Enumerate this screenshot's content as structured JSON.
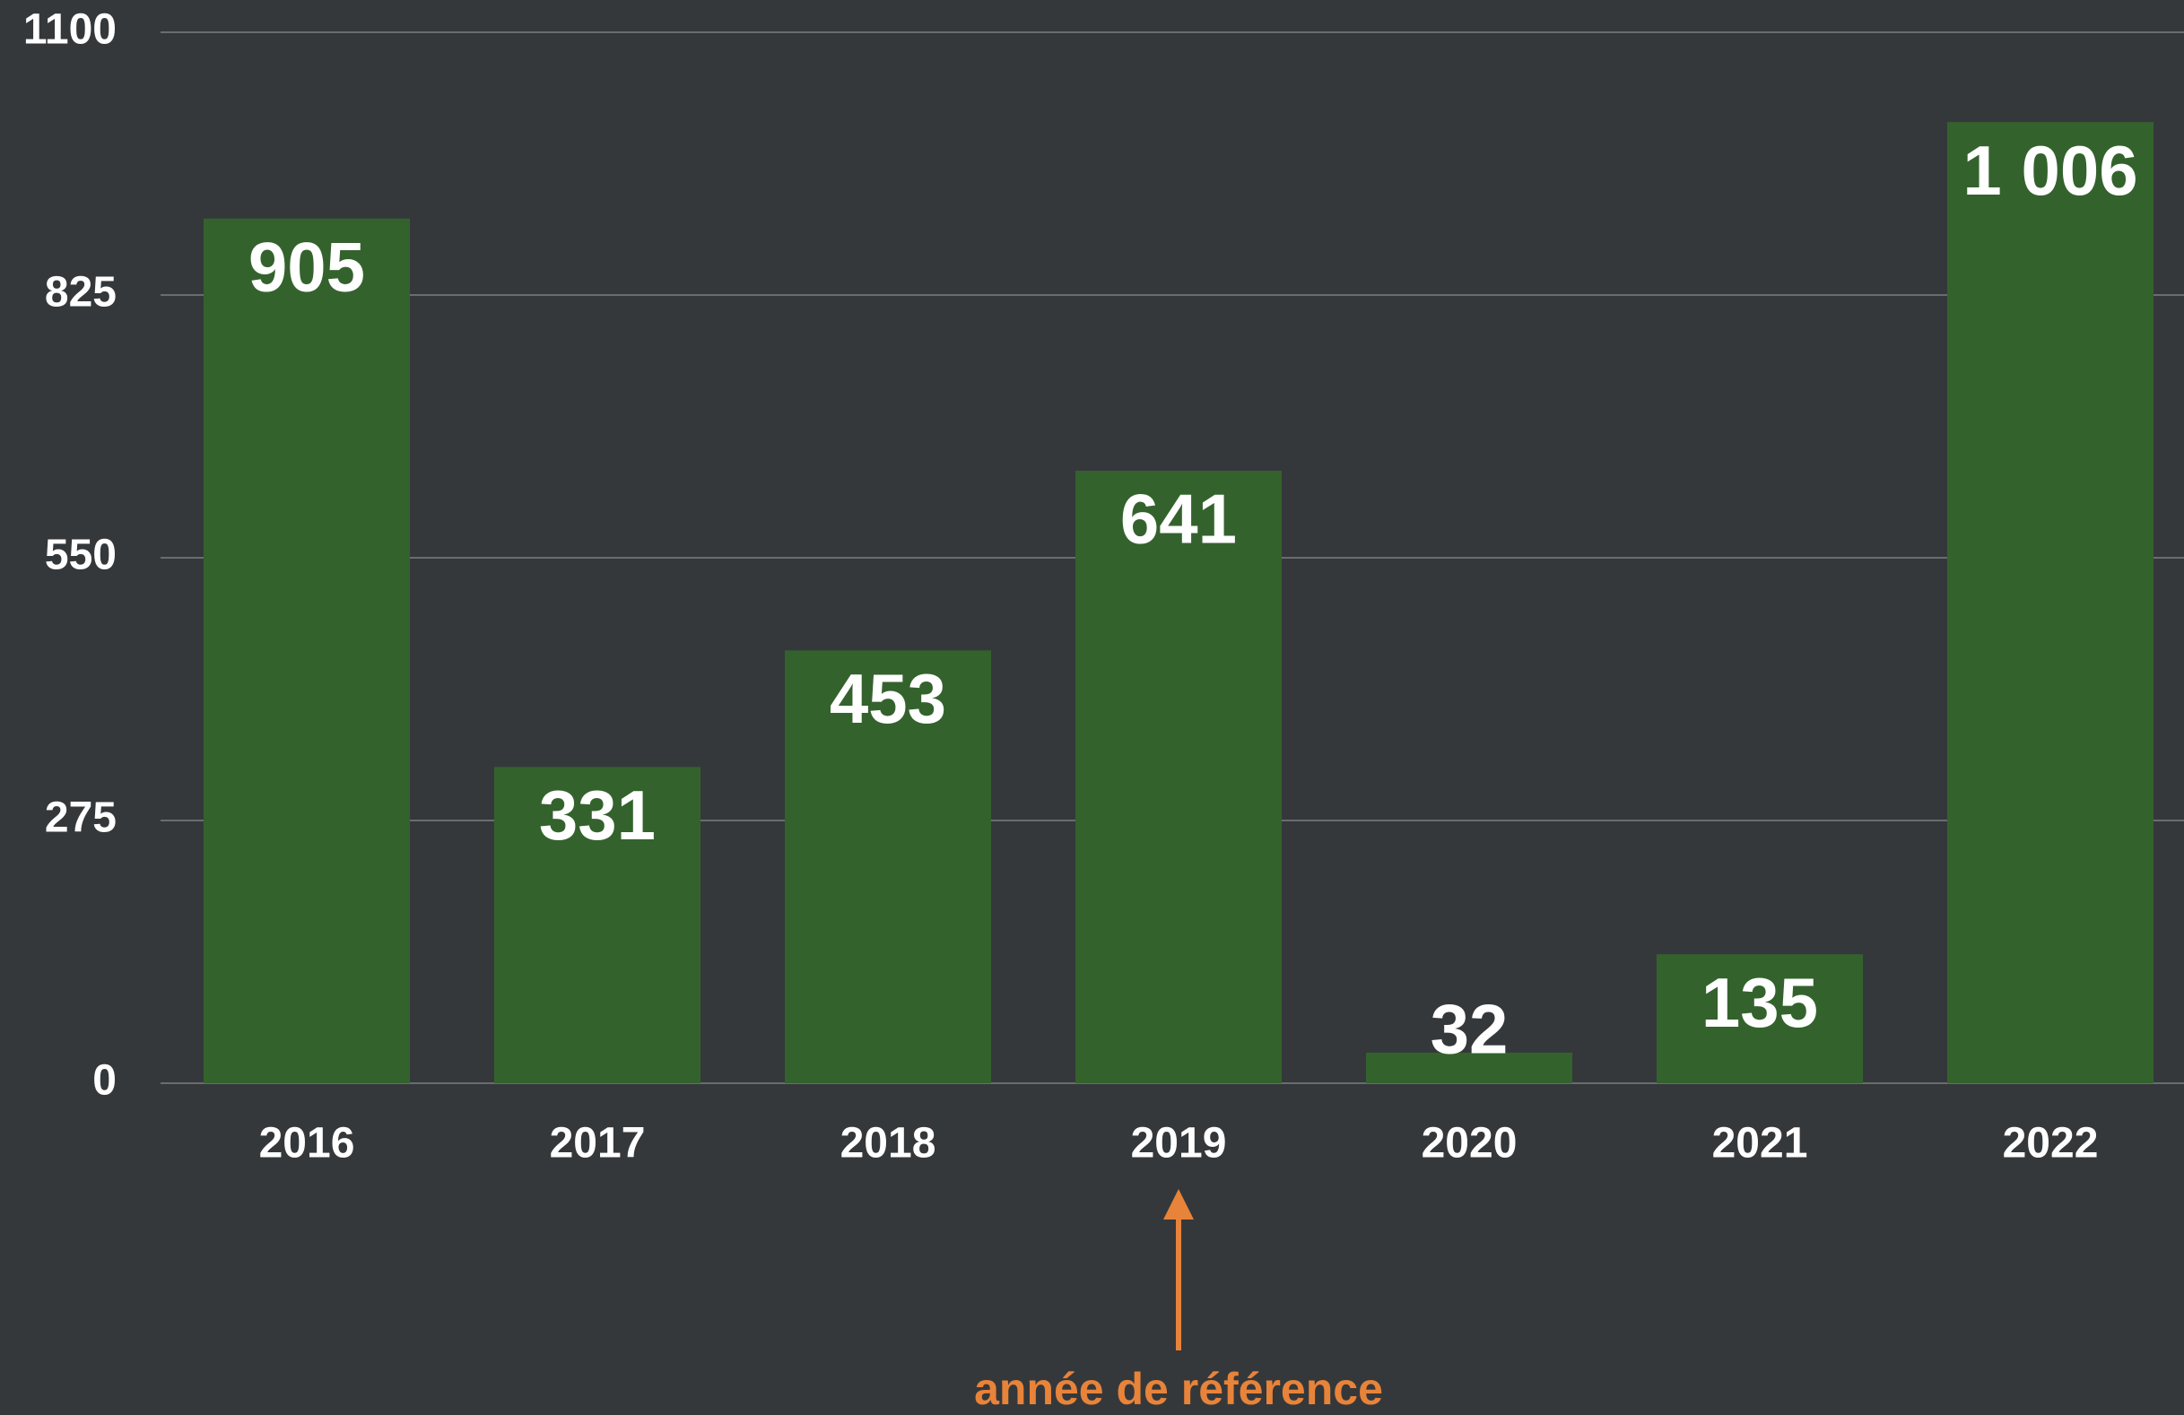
{
  "chart_data": {
    "type": "bar",
    "categories": [
      "2016",
      "2017",
      "2018",
      "2019",
      "2020",
      "2021",
      "2022"
    ],
    "values": [
      905,
      331,
      453,
      641,
      32,
      135,
      1006
    ],
    "value_labels": [
      "905",
      "331",
      "453",
      "641",
      "32",
      "135",
      "1 006"
    ],
    "color": "#34622d",
    "ylim": [
      0,
      1100
    ],
    "yticks": [
      0,
      275,
      550,
      825,
      1100
    ],
    "grid": true,
    "annotation": {
      "text": "année de référence",
      "category": 3,
      "color": "#e8833a"
    }
  }
}
